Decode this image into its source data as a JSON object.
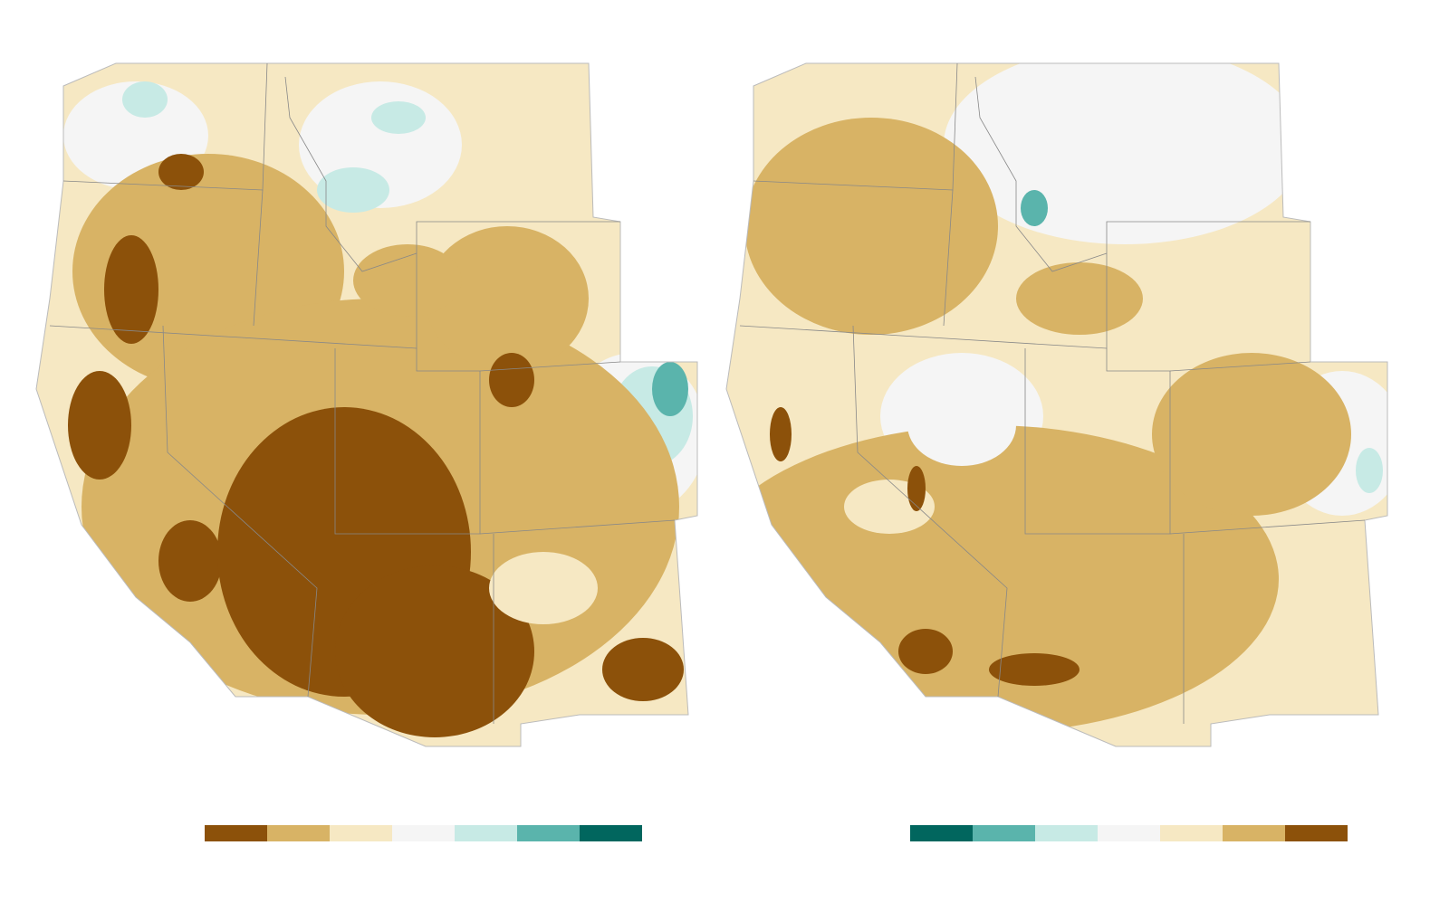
{
  "maps": [
    {
      "name": "left-map",
      "legend": {
        "colors": [
          "#8c510a",
          "#d8b365",
          "#f6e8c3",
          "#f5f5f5",
          "#c7eae5",
          "#5ab4ac",
          "#01665e"
        ]
      }
    },
    {
      "name": "right-map",
      "legend": {
        "colors": [
          "#01665e",
          "#5ab4ac",
          "#c7eae5",
          "#f5f5f5",
          "#f6e8c3",
          "#d8b365",
          "#8c510a"
        ]
      }
    }
  ],
  "palette": {
    "dark_brown": "#8c510a",
    "tan": "#d8b365",
    "light_tan": "#f6e8c3",
    "neutral": "#f5f5f5",
    "light_teal": "#c7eae5",
    "teal": "#5ab4ac",
    "dark_teal": "#01665e",
    "border": "#888888"
  }
}
